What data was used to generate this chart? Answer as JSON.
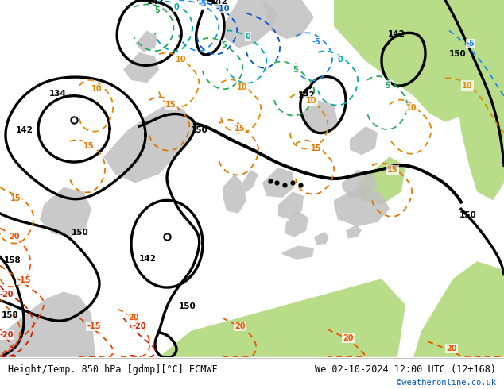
{
  "title_left": "Height/Temp. 850 hPa [gdmp][°C] ECMWF",
  "title_right": "We 02-10-2024 12:00 UTC (12+168)",
  "credit": "©weatheronline.co.uk",
  "bg_color": "#d8d8d8",
  "land_green": "#b8dc88",
  "land_gray": "#c0c0c0",
  "sea_bg": "#d0d8e8",
  "footer_bg": "#f0f0f0",
  "black_lw": 2.4,
  "temp_lw": 1.3,
  "label_fs": 7.5,
  "footer_fs": 8.5
}
